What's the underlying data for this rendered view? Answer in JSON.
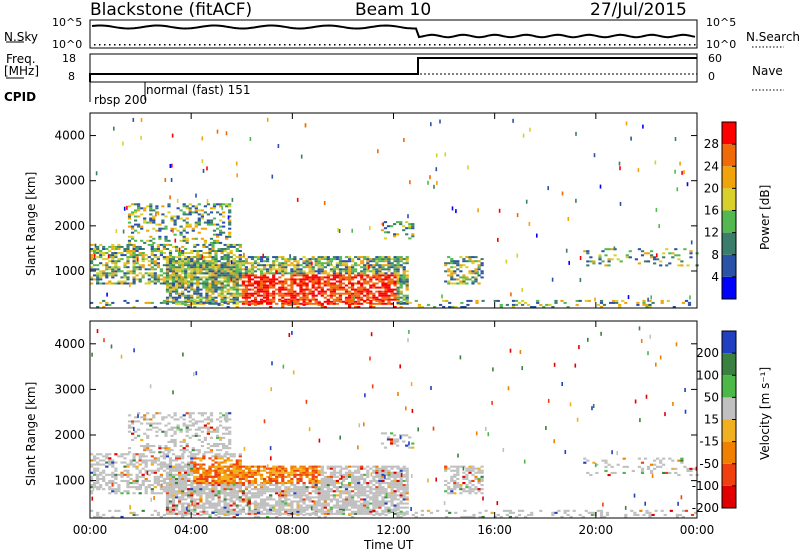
{
  "header": {
    "station": "Blackstone (fitACF)",
    "beam": "Beam 10",
    "date": "27/Jul/2015"
  },
  "top_panel": {
    "nsky_label": "N.Sky",
    "nsky_ticks": [
      "10^5",
      "10^0"
    ],
    "nsearch_label": "N.Search",
    "nsearch_ticks": [
      "10^5",
      "10^0"
    ],
    "freq_label": "Freq.",
    "freq_unit": "[MHz]",
    "freq_ticks": [
      "18",
      "8"
    ],
    "nave_label": "Nave",
    "nave_ticks": [
      "60",
      "0"
    ],
    "cpid_label": "CPID",
    "cpid_entries": [
      "rbsp 200",
      "normal (fast) 151"
    ]
  },
  "chart_data": [
    {
      "type": "heatmap",
      "name": "power",
      "ylabel": "Slant Range [km]",
      "xlabel": "",
      "x_ticks": [
        "00:00",
        "04:00",
        "08:00",
        "12:00",
        "16:00",
        "20:00",
        "00:00"
      ],
      "y_ticks": [
        "1000",
        "2000",
        "3000",
        "4000"
      ],
      "ylim": [
        180,
        4500
      ],
      "xlim_hours": [
        0,
        24
      ],
      "colorbar": {
        "label": "Power [dB]",
        "ticks": [
          "4",
          "8",
          "12",
          "16",
          "20",
          "24",
          "28"
        ],
        "colors": [
          "#0000ff",
          "#2a52a6",
          "#3a7d6a",
          "#52b84f",
          "#d9d12b",
          "#f0a30a",
          "#f06a0a",
          "#ff0000"
        ]
      }
    },
    {
      "type": "heatmap",
      "name": "velocity",
      "ylabel": "Slant Range [km]",
      "xlabel": "Time UT",
      "x_ticks": [
        "00:00",
        "04:00",
        "08:00",
        "12:00",
        "16:00",
        "20:00",
        "00:00"
      ],
      "y_ticks": [
        "1000",
        "2000",
        "3000",
        "4000"
      ],
      "ylim": [
        180,
        4500
      ],
      "xlim_hours": [
        0,
        24
      ],
      "colorbar": {
        "label": "Velocity [m s⁻¹]",
        "ticks": [
          "200",
          "100",
          "50",
          "15",
          "-15",
          "-50",
          "-100",
          "-200"
        ],
        "colors": [
          "#2040c0",
          "#3a8040",
          "#4cb848",
          "#c0c0c0",
          "#f0b020",
          "#f08000",
          "#f04010",
          "#e00000"
        ]
      }
    }
  ]
}
